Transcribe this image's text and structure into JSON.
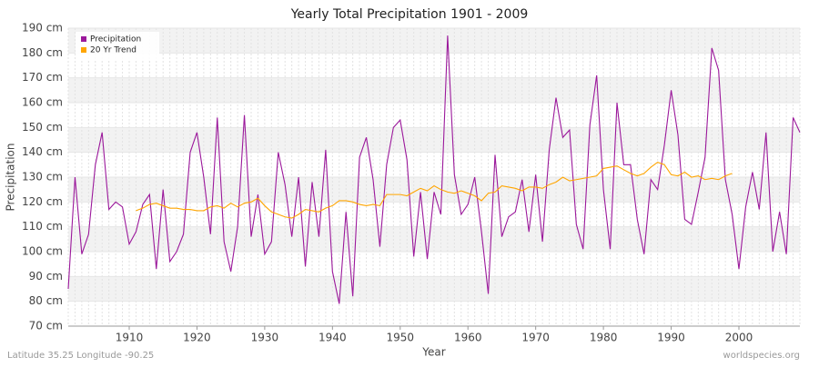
{
  "chart_data": {
    "type": "line",
    "title": "Yearly Total Precipitation 1901 - 2009",
    "x_label": "Year",
    "y_label": "Precipitation",
    "location": "Latitude 35.25 Longitude -90.25",
    "source": "worldspecies.org",
    "legend": "top-left",
    "grid": true,
    "xlim": [
      1901,
      2009
    ],
    "xticks": [
      1910,
      1920,
      1930,
      1940,
      1950,
      1960,
      1970,
      1980,
      1990,
      2000
    ],
    "ylim": [
      70,
      190
    ],
    "yticks": [
      {
        "value": 70,
        "label": "70 cm"
      },
      {
        "value": 80,
        "label": "80 cm"
      },
      {
        "value": 90,
        "label": "90 cm"
      },
      {
        "value": 100,
        "label": "100 cm"
      },
      {
        "value": 110,
        "label": "110 cm"
      },
      {
        "value": 120,
        "label": "120 cm"
      },
      {
        "value": 130,
        "label": "130 cm"
      },
      {
        "value": 140,
        "label": "140 cm"
      },
      {
        "value": 150,
        "label": "150 cm"
      },
      {
        "value": 160,
        "label": "160 cm"
      },
      {
        "value": 170,
        "label": "170 cm"
      },
      {
        "value": 180,
        "label": "180 cm"
      },
      {
        "value": 190,
        "label": "190 cm"
      }
    ],
    "x": [
      1901,
      1902,
      1903,
      1904,
      1905,
      1906,
      1907,
      1908,
      1909,
      1910,
      1911,
      1912,
      1913,
      1914,
      1915,
      1916,
      1917,
      1918,
      1919,
      1920,
      1921,
      1922,
      1923,
      1924,
      1925,
      1926,
      1927,
      1928,
      1929,
      1930,
      1931,
      1932,
      1933,
      1934,
      1935,
      1936,
      1937,
      1938,
      1939,
      1940,
      1941,
      1942,
      1943,
      1944,
      1945,
      1946,
      1947,
      1948,
      1949,
      1950,
      1951,
      1952,
      1953,
      1954,
      1955,
      1956,
      1957,
      1958,
      1959,
      1960,
      1961,
      1962,
      1963,
      1964,
      1965,
      1966,
      1967,
      1968,
      1969,
      1970,
      1971,
      1972,
      1973,
      1974,
      1975,
      1976,
      1977,
      1978,
      1979,
      1980,
      1981,
      1982,
      1983,
      1984,
      1985,
      1986,
      1987,
      1988,
      1989,
      1990,
      1991,
      1992,
      1993,
      1994,
      1995,
      1996,
      1997,
      1998,
      1999,
      2000,
      2001,
      2002,
      2003,
      2004,
      2005,
      2006,
      2007,
      2008,
      2009
    ],
    "series": [
      {
        "name": "Precipitation",
        "color": "#9b189b",
        "values": [
          85,
          130,
          99,
          107,
          135,
          148,
          117,
          120,
          118,
          103,
          108,
          119,
          123,
          93,
          125,
          96,
          100,
          107,
          140,
          148,
          130,
          107,
          154,
          104,
          92,
          110,
          155,
          106,
          123,
          99,
          104,
          140,
          127,
          106,
          130,
          94,
          128,
          106,
          141,
          92,
          79,
          116,
          82,
          138,
          146,
          129,
          102,
          135,
          150,
          153,
          137,
          98,
          124,
          97,
          124,
          115,
          187,
          131,
          115,
          119,
          130,
          108,
          83,
          139,
          106,
          114,
          116,
          129,
          108,
          131,
          104,
          141,
          162,
          146,
          149,
          111,
          101,
          151,
          171,
          125,
          101,
          160,
          135,
          135,
          113,
          99,
          129,
          125,
          143,
          165,
          147,
          113,
          111,
          124,
          138,
          182,
          173,
          129,
          115,
          93,
          118,
          132,
          117,
          148,
          100,
          116,
          99,
          154,
          148
        ]
      },
      {
        "name": "20 Yr Trend",
        "color": "#ffa500",
        "values": [
          null,
          null,
          null,
          null,
          null,
          null,
          null,
          null,
          null,
          null,
          116.5,
          117.5,
          119,
          119.5,
          118.5,
          117.5,
          117.5,
          117,
          117,
          116.5,
          116.5,
          118,
          118.5,
          117.5,
          119.5,
          118,
          119.5,
          120,
          121.5,
          118.5,
          116,
          115,
          114,
          113.5,
          115,
          117,
          116.5,
          116,
          117.5,
          118.5,
          120.5,
          120.5,
          120,
          119,
          118.5,
          119,
          118.5,
          123,
          123,
          123,
          122.5,
          124,
          125.5,
          124.5,
          126.5,
          125,
          124,
          123.5,
          124.5,
          123.5,
          122.5,
          120.5,
          123.5,
          124,
          126.5,
          126,
          125.5,
          124.5,
          126,
          126,
          125.5,
          127,
          128,
          130,
          128.5,
          129,
          129.5,
          130,
          130.5,
          133.5,
          134,
          134.5,
          133,
          131.5,
          130.5,
          131.5,
          134,
          136,
          135,
          131,
          130.5,
          132,
          130,
          130.5,
          129,
          129.5,
          129,
          130.5,
          131.5,
          null,
          null,
          null,
          null,
          null,
          null,
          null,
          null,
          null,
          null
        ]
      }
    ]
  }
}
